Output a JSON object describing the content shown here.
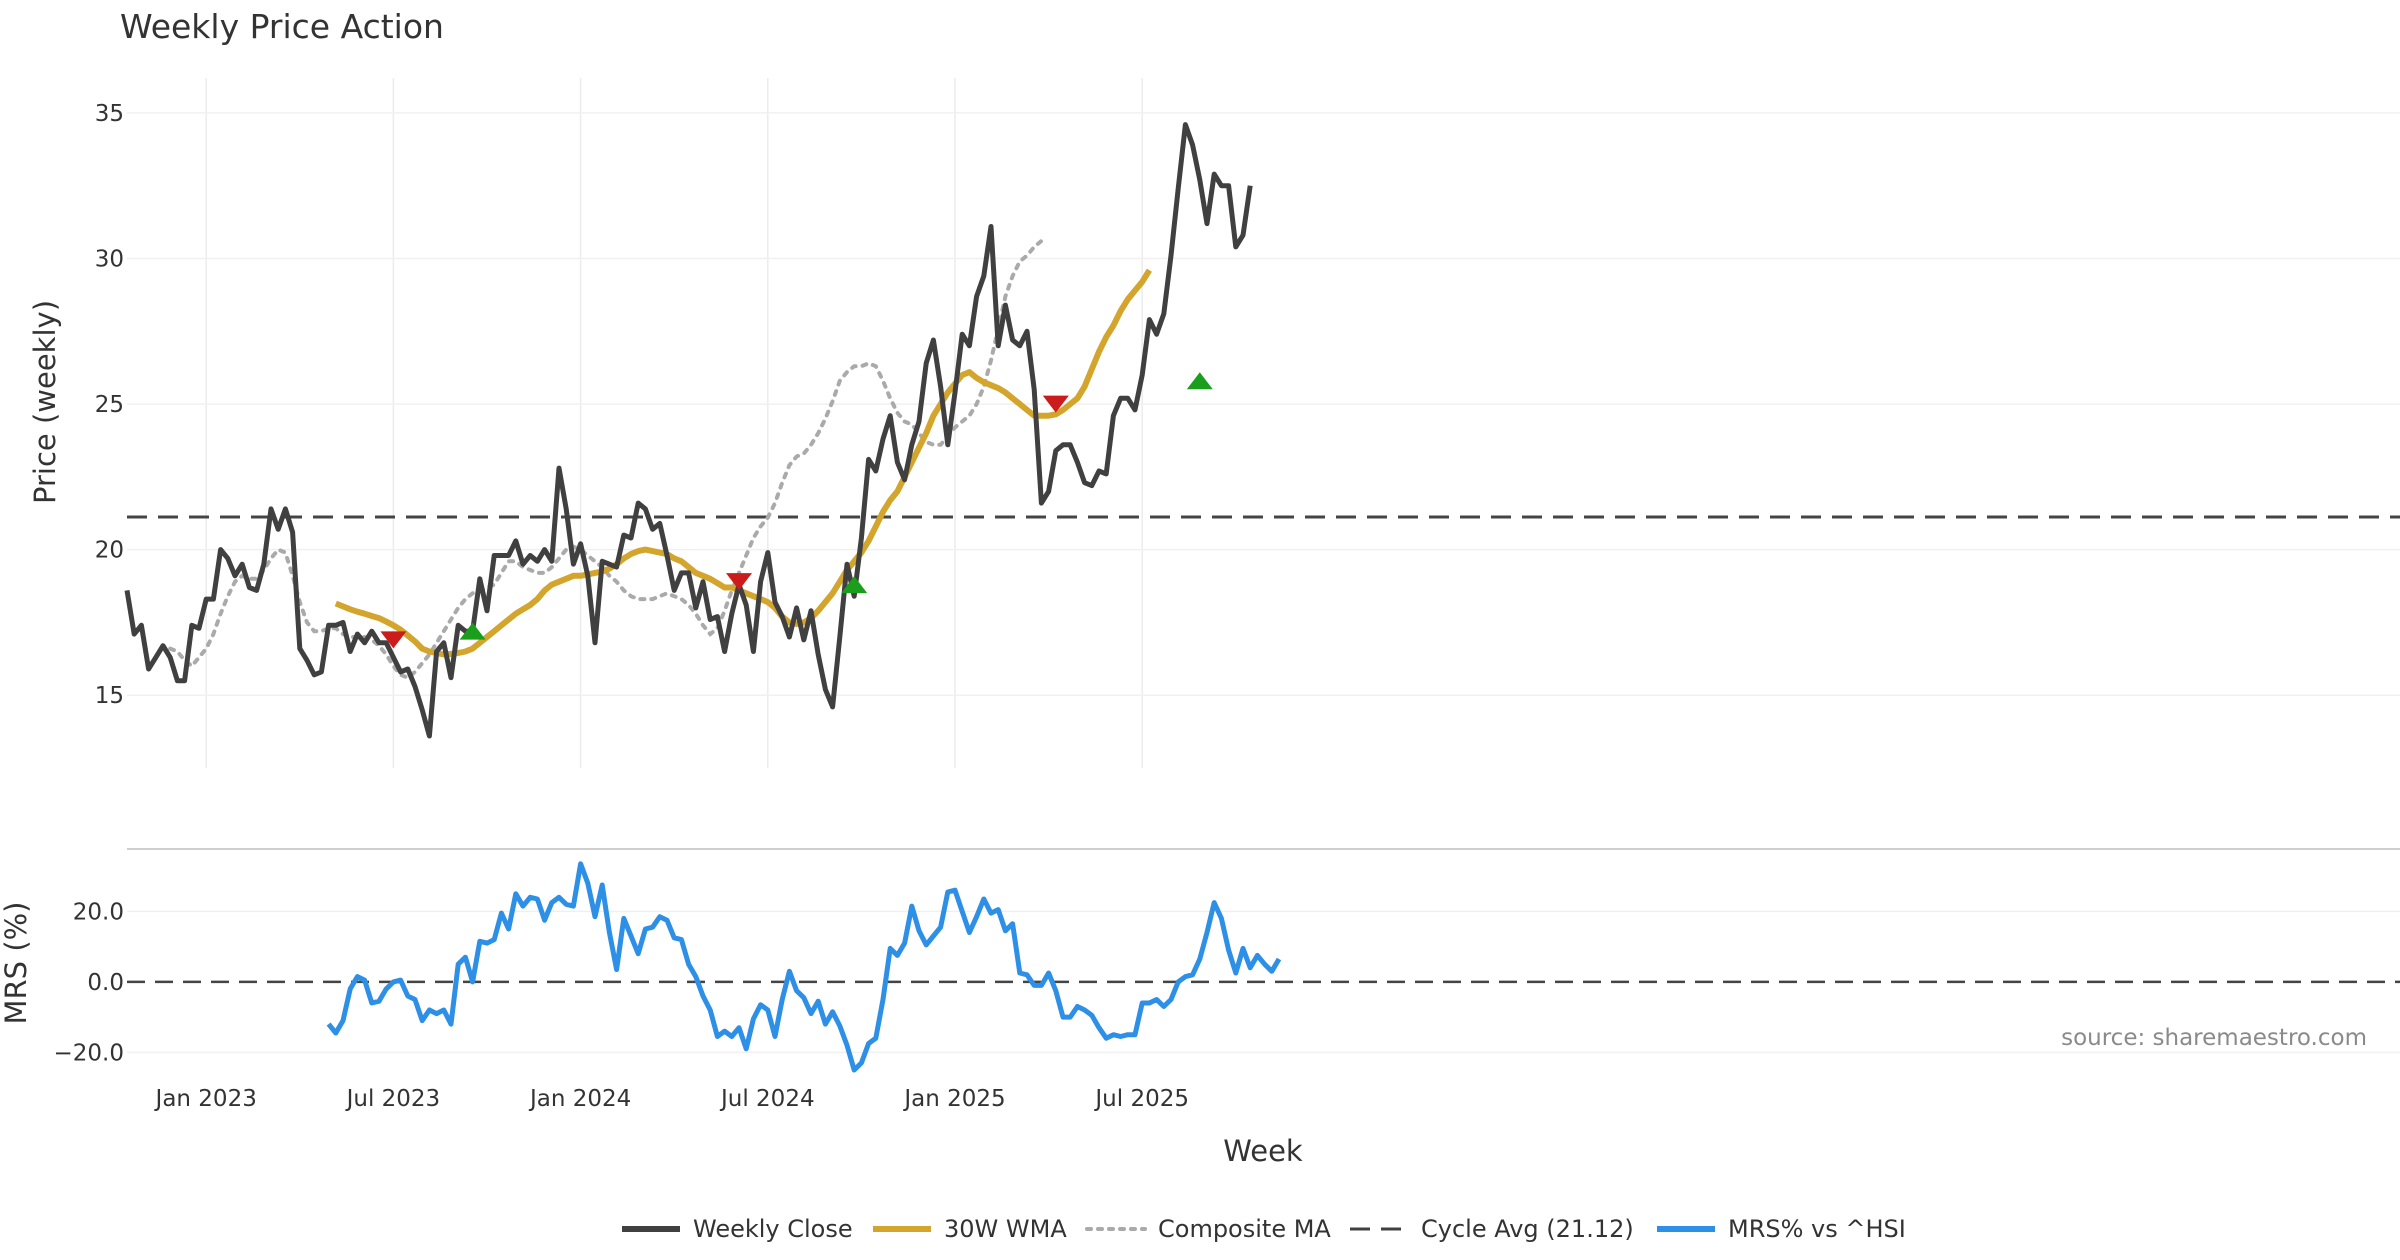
{
  "chart_data": {
    "type": "line",
    "title": "Weekly Price Action",
    "xlabel": "Week",
    "x_ticks": [
      "Jan 2023",
      "Jul 2023",
      "Jan 2024",
      "Jul 2024",
      "Jan 2025",
      "Jul 2025"
    ],
    "source": "source: sharemaestro.com",
    "price_panel": {
      "ylabel": "Price (weekly)",
      "ylim": [
        12.5,
        36.2
      ],
      "y_ticks": [
        "15",
        "20",
        "25",
        "30",
        "35"
      ],
      "cycle_avg": 21.12,
      "series": [
        {
          "name": "Weekly Close",
          "color": "#404040",
          "start_index": 0,
          "values": [
            18.6,
            17.1,
            17.4,
            15.9,
            16.3,
            16.7,
            16.3,
            15.5,
            15.5,
            17.4,
            17.3,
            18.3,
            18.3,
            20.0,
            19.7,
            19.1,
            19.5,
            18.7,
            18.6,
            19.5,
            21.4,
            20.7,
            21.4,
            20.6,
            16.6,
            16.2,
            15.7,
            15.8,
            17.4,
            17.4,
            17.5,
            16.5,
            17.1,
            16.8,
            17.2,
            16.8,
            16.8,
            16.3,
            15.8,
            15.9,
            15.3,
            14.5,
            13.6,
            16.5,
            16.8,
            15.6,
            17.4,
            17.2,
            17.2,
            19.0,
            17.9,
            19.8,
            19.8,
            19.8,
            20.3,
            19.5,
            19.8,
            19.6,
            20.0,
            19.6,
            22.8,
            21.4,
            19.5,
            20.2,
            19.1,
            16.8,
            19.6,
            19.5,
            19.4,
            20.5,
            20.4,
            21.6,
            21.4,
            20.7,
            20.9,
            19.8,
            18.6,
            19.2,
            19.2,
            18.0,
            18.9,
            17.6,
            17.7,
            16.5,
            17.8,
            18.8,
            18.1,
            16.5,
            18.9,
            19.9,
            18.2,
            17.7,
            17.0,
            18.0,
            16.9,
            17.9,
            16.4,
            15.2,
            14.6,
            17.0,
            19.5,
            18.4,
            20.4,
            23.1,
            22.7,
            23.8,
            24.6,
            23.0,
            22.4,
            23.6,
            24.4,
            26.4,
            27.2,
            25.6,
            23.6,
            25.4,
            27.4,
            27.0,
            28.7,
            29.4,
            31.1,
            27.0,
            28.4,
            27.2,
            27.0,
            27.5,
            25.5,
            21.6,
            22.0,
            23.4,
            23.6,
            23.6,
            23.0,
            22.3,
            22.2,
            22.7,
            22.6,
            24.6,
            25.2,
            25.2,
            24.8,
            26.0,
            27.9,
            27.4,
            28.1,
            30.1,
            32.4,
            34.6,
            33.9,
            32.7,
            31.2,
            32.9,
            32.5,
            32.5,
            30.4,
            30.8,
            32.5
          ]
        },
        {
          "name": "30W WMA",
          "color": "#d4a52c",
          "start_index": 29,
          "values": [
            18.15,
            18.05,
            17.95,
            17.87,
            17.8,
            17.72,
            17.65,
            17.53,
            17.4,
            17.25,
            17.05,
            16.85,
            16.6,
            16.5,
            16.45,
            16.4,
            16.42,
            16.45,
            16.5,
            16.6,
            16.8,
            17.0,
            17.2,
            17.4,
            17.6,
            17.8,
            17.95,
            18.1,
            18.3,
            18.6,
            18.8,
            18.9,
            19.0,
            19.1,
            19.1,
            19.15,
            19.2,
            19.25,
            19.35,
            19.5,
            19.7,
            19.85,
            19.95,
            20.0,
            19.95,
            19.9,
            19.85,
            19.7,
            19.6,
            19.4,
            19.2,
            19.1,
            19.0,
            18.85,
            18.7,
            18.7,
            18.6,
            18.5,
            18.4,
            18.3,
            18.2,
            18.0,
            17.7,
            17.5,
            17.45,
            17.5,
            17.65,
            17.9,
            18.2,
            18.5,
            18.9,
            19.3,
            19.6,
            19.9,
            20.3,
            20.8,
            21.3,
            21.7,
            22.0,
            22.5,
            23.0,
            23.5,
            24.0,
            24.6,
            25.0,
            25.4,
            25.7,
            26.0,
            26.1,
            25.9,
            25.75,
            25.65,
            25.55,
            25.4,
            25.2,
            25.0,
            24.8,
            24.6,
            24.6,
            24.6,
            24.65,
            24.8,
            25.0,
            25.2,
            25.6,
            26.2,
            26.8,
            27.3,
            27.7,
            28.2,
            28.6,
            28.9,
            29.2,
            29.6
          ]
        },
        {
          "name": "Composite MA",
          "color": "#aaaaaa",
          "start_index": 6,
          "values": [
            16.6,
            16.5,
            16.2,
            16.0,
            16.3,
            16.6,
            17.1,
            17.8,
            18.4,
            18.9,
            19.1,
            19.0,
            19.0,
            19.3,
            19.7,
            20.0,
            19.9,
            19.1,
            18.2,
            17.5,
            17.2,
            17.2,
            17.3,
            17.3,
            17.1,
            17.0,
            17.0,
            17.0,
            16.9,
            16.7,
            16.4,
            16.0,
            15.7,
            15.6,
            15.8,
            16.1,
            16.4,
            16.8,
            17.2,
            17.6,
            18.0,
            18.3,
            18.5,
            18.6,
            18.7,
            18.8,
            19.2,
            19.6,
            19.6,
            19.4,
            19.3,
            19.2,
            19.2,
            19.4,
            19.7,
            20.0,
            20.1,
            20.0,
            19.8,
            19.6,
            19.4,
            19.1,
            18.9,
            18.6,
            18.4,
            18.3,
            18.3,
            18.3,
            18.4,
            18.5,
            18.4,
            18.3,
            18.1,
            17.8,
            17.4,
            17.1,
            17.3,
            17.9,
            18.6,
            19.2,
            19.8,
            20.4,
            20.8,
            21.1,
            21.6,
            22.3,
            22.9,
            23.2,
            23.3,
            23.6,
            24.0,
            24.5,
            25.1,
            25.8,
            26.1,
            26.3,
            26.3,
            26.4,
            26.3,
            25.8,
            25.2,
            24.7,
            24.4,
            24.3,
            24.0,
            23.7,
            23.6,
            23.6,
            23.9,
            24.2,
            24.4,
            24.6,
            25.0,
            25.6,
            26.5,
            27.6,
            28.7,
            29.4,
            29.9,
            30.1,
            30.4,
            30.6
          ]
        }
      ],
      "signals": [
        {
          "type": "sell",
          "index": 37,
          "value": 16.9,
          "color": "#cc1b1b"
        },
        {
          "type": "buy",
          "index": 48,
          "value": 17.2,
          "color": "#1b9e1b"
        },
        {
          "type": "sell",
          "index": 85,
          "value": 18.9,
          "color": "#cc1b1b"
        },
        {
          "type": "buy",
          "index": 101,
          "value": 18.8,
          "color": "#1b9e1b"
        },
        {
          "type": "sell",
          "index": 129,
          "value": 25.0,
          "color": "#cc1b1b"
        },
        {
          "type": "buy",
          "index": 149,
          "value": 25.8,
          "color": "#1b9e1b"
        }
      ]
    },
    "mrs_panel": {
      "ylabel": "MRS (%)",
      "ylim": [
        -27,
        36
      ],
      "y_ticks": [
        "20.0",
        "0.0",
        "−20.0"
      ],
      "series": [
        {
          "name": "MRS% vs ^HSI",
          "color": "#2e8fe6",
          "start_index": 28,
          "values": [
            -12,
            -14.5,
            -11,
            -2,
            1.5,
            0.5,
            -6,
            -5.5,
            -2,
            0,
            0.5,
            -4,
            -5,
            -11,
            -8,
            -9,
            -8,
            -12,
            5,
            7,
            0,
            11.5,
            11,
            12,
            19.5,
            15,
            25,
            21.5,
            24,
            23.5,
            17.5,
            22.5,
            24,
            22,
            21.5,
            33.5,
            28,
            18.5,
            27.5,
            14,
            3.5,
            18,
            13,
            8,
            15,
            15.5,
            18.5,
            17.5,
            12.5,
            12,
            5,
            1.5,
            -4,
            -8,
            -15.5,
            -14,
            -15.5,
            -13,
            -19,
            -10.5,
            -6.5,
            -8,
            -15.5,
            -5,
            3,
            -2.5,
            -4.5,
            -9,
            -5.5,
            -12,
            -8.5,
            -12.5,
            -18,
            -25,
            -23,
            -17.5,
            -16,
            -5,
            9.5,
            7.5,
            11,
            21.5,
            14.5,
            10.5,
            13,
            15.5,
            25.5,
            26,
            20,
            14,
            18.5,
            23.5,
            19.5,
            20.5,
            14.5,
            16.5,
            2.5,
            2,
            -1,
            -1,
            2.5,
            -2.5,
            -10,
            -10,
            -7,
            -8,
            -9.5,
            -13,
            -16,
            -15,
            -15.5,
            -15,
            -15,
            -6,
            -6,
            -5,
            -7,
            -5,
            0,
            1.5,
            2,
            6.5,
            14,
            22.5,
            18,
            9,
            2.5,
            9.5,
            4,
            7.5,
            5,
            3,
            6.5
          ]
        }
      ]
    },
    "legend": [
      {
        "label": "Weekly Close",
        "color": "#404040",
        "style": "solid"
      },
      {
        "label": "30W WMA",
        "color": "#d4a52c",
        "style": "solid"
      },
      {
        "label": "Composite MA",
        "color": "#aaaaaa",
        "style": "dotted"
      },
      {
        "label": "Cycle Avg (21.12)",
        "color": "#404040",
        "style": "dashed"
      },
      {
        "label": "MRS% vs ^HSI",
        "color": "#2e8fe6",
        "style": "solid"
      }
    ]
  }
}
